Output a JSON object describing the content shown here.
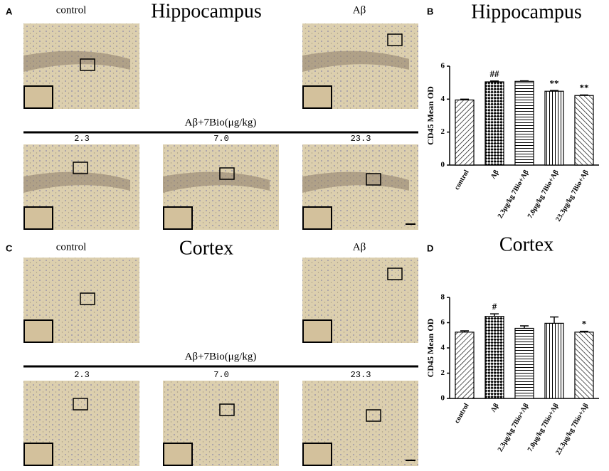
{
  "micrographs": {
    "hippocampus": {
      "letter": "A",
      "title": "Hippocampus",
      "top_labels": [
        "control",
        "Aβ"
      ],
      "group_label": "Aβ+7Bio(μg/kg)",
      "doses": [
        "2.3",
        "7.0",
        "23.3"
      ]
    },
    "cortex": {
      "letter": "C",
      "title": "Cortex",
      "top_labels": [
        "control",
        "Aβ"
      ],
      "group_label": "Aβ+7Bio(μg/kg)",
      "doses": [
        "2.3",
        "7.0",
        "23.3"
      ]
    }
  },
  "chart_data": [
    {
      "type": "bar",
      "panel_label": "B",
      "title": "Hippocampus",
      "y_label": "CD45 Mean OD",
      "categories": [
        "control",
        "Aβ",
        "2.3μg/kg 7Bio+Aβ",
        "7.0μg/kg 7Bio+Aβ",
        "23.3μg/kg 7Bio+Aβ"
      ],
      "values": [
        3.95,
        5.05,
        5.08,
        4.48,
        4.22
      ],
      "errors": [
        0.05,
        0.05,
        0.03,
        0.04,
        0.03
      ],
      "annotations": [
        {
          "index": 1,
          "text": "##"
        },
        {
          "index": 3,
          "text": "**"
        },
        {
          "index": 4,
          "text": "**"
        }
      ],
      "ylim": [
        0,
        6
      ],
      "yticks": [
        0,
        2,
        4,
        6
      ]
    },
    {
      "type": "bar",
      "panel_label": "D",
      "title": "Cortex",
      "y_label": "CD45 Mean OD",
      "categories": [
        "control",
        "Aβ",
        "2.3μg/kg 7Bio+Aβ",
        "7.0μg/kg 7Bio+Aβ",
        "23.3μg/kg 7Bio+Aβ"
      ],
      "values": [
        5.25,
        6.5,
        5.55,
        5.95,
        5.25
      ],
      "errors": [
        0.1,
        0.2,
        0.2,
        0.5,
        0.07
      ],
      "annotations": [
        {
          "index": 1,
          "text": "#"
        },
        {
          "index": 4,
          "text": "*"
        }
      ],
      "ylim": [
        0,
        8
      ],
      "yticks": [
        0,
        2,
        4,
        6,
        8
      ]
    }
  ]
}
